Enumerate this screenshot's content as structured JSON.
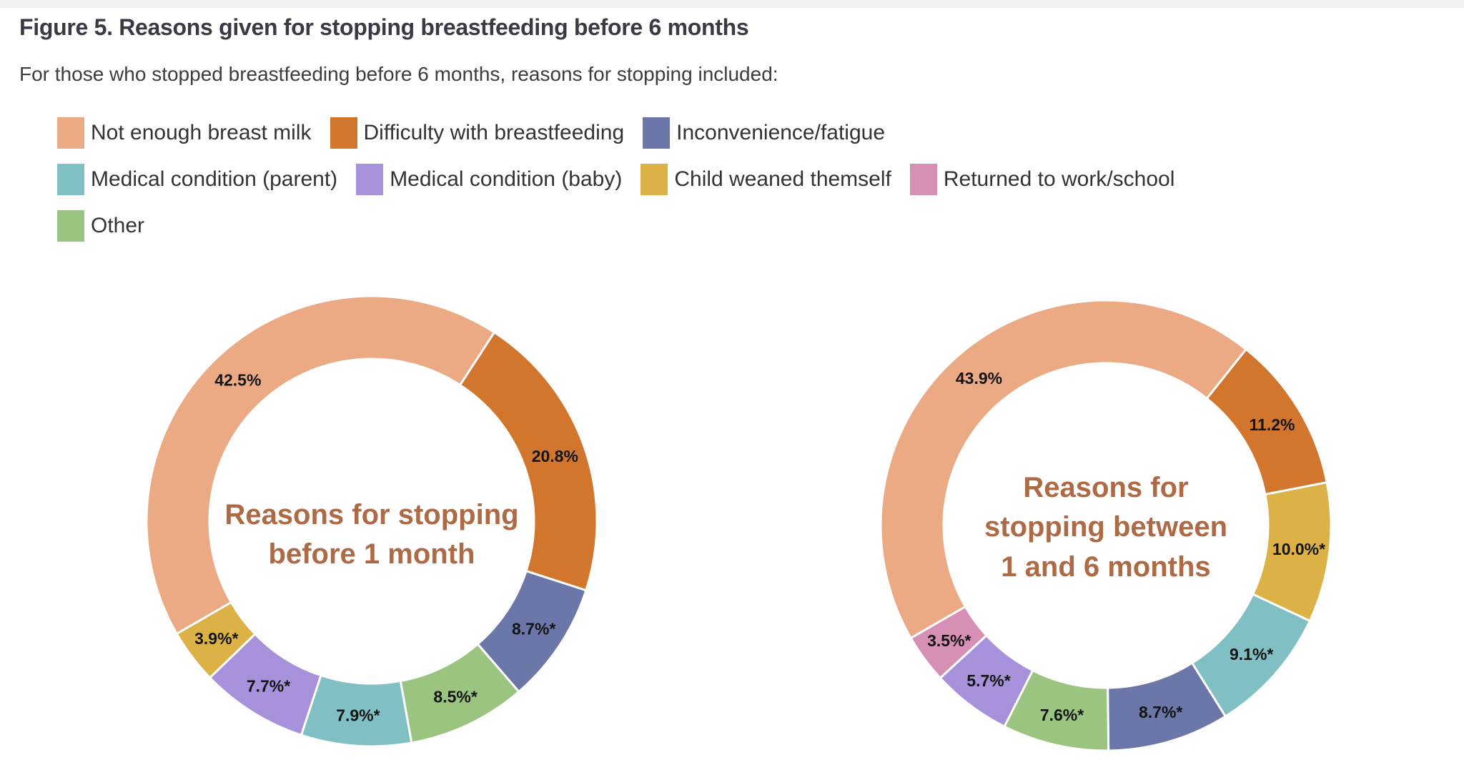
{
  "page": {
    "title": "Figure 5. Reasons given for stopping breastfeeding before 6 months",
    "subtitle": "For those who stopped breastfeeding before 6 months, reasons for stopping included:"
  },
  "colors": {
    "not_enough_breast_milk": "#EBAA84",
    "difficulty_with_breastfeeding": "#D1762C",
    "inconvenience_fatigue": "#6B76A9",
    "medical_condition_parent": "#80BFC4",
    "medical_condition_baby": "#A791DB",
    "child_weaned_themself": "#DCB247",
    "returned_to_work_school": "#D790B5",
    "other": "#9BC481",
    "center_title_text": "#AD6A45",
    "heading_text": "#3A3A44",
    "segment_label_text": "#141414"
  },
  "legend": {
    "items": [
      {
        "label": "Not enough breast milk",
        "color": "#EBAA84"
      },
      {
        "label": "Difficulty with breastfeeding",
        "color": "#D1762C"
      },
      {
        "label": "Inconvenience/fatigue",
        "color": "#6B76A9"
      },
      {
        "label": "Medical condition (parent)",
        "color": "#80BFC4"
      },
      {
        "label": "Medical condition (baby)",
        "color": "#A791DB"
      },
      {
        "label": "Child weaned themself",
        "color": "#DCB247"
      },
      {
        "label": "Returned to work/school",
        "color": "#D790B5"
      },
      {
        "label": "Other",
        "color": "#9BC481"
      }
    ]
  },
  "chart_data": [
    {
      "type": "pie",
      "subtype": "donut",
      "title": "Reasons for stopping before 1 month",
      "title_lines": [
        "Reasons for stopping",
        "before 1 month"
      ],
      "start_angle_deg": 240,
      "legend_position": "top",
      "segments": [
        {
          "category": "Not enough breast milk",
          "value": 42.5,
          "label": "42.5%",
          "color": "#EBAA84"
        },
        {
          "category": "Difficulty with breastfeeding",
          "value": 20.8,
          "label": "20.8%",
          "color": "#D1762C"
        },
        {
          "category": "Inconvenience/fatigue",
          "value": 8.7,
          "label": "8.7%*",
          "color": "#6B76A9"
        },
        {
          "category": "Other",
          "value": 8.5,
          "label": "8.5%*",
          "color": "#9BC481"
        },
        {
          "category": "Medical condition (parent)",
          "value": 7.9,
          "label": "7.9%*",
          "color": "#80BFC4"
        },
        {
          "category": "Medical condition (baby)",
          "value": 7.7,
          "label": "7.7%*",
          "color": "#A791DB"
        },
        {
          "category": "Child weaned themself",
          "value": 3.9,
          "label": "3.9%*",
          "color": "#DCB247"
        }
      ]
    },
    {
      "type": "pie",
      "subtype": "donut",
      "title": "Reasons for stopping between 1 and 6 months",
      "title_lines": [
        "Reasons for",
        "stopping between",
        "1 and 6 months"
      ],
      "start_angle_deg": 240,
      "legend_position": "top",
      "segments": [
        {
          "category": "Not enough breast milk",
          "value": 43.9,
          "label": "43.9%",
          "color": "#EBAA84"
        },
        {
          "category": "Difficulty with breastfeeding",
          "value": 11.2,
          "label": "11.2%",
          "color": "#D1762C"
        },
        {
          "category": "Child weaned themself",
          "value": 10.0,
          "label": "10.0%*",
          "color": "#DCB247"
        },
        {
          "category": "Medical condition (parent)",
          "value": 9.1,
          "label": "9.1%*",
          "color": "#80BFC4"
        },
        {
          "category": "Inconvenience/fatigue",
          "value": 8.7,
          "label": "8.7%*",
          "color": "#6B76A9"
        },
        {
          "category": "Other",
          "value": 7.6,
          "label": "7.6%*",
          "color": "#9BC481"
        },
        {
          "category": "Medical condition (baby)",
          "value": 5.7,
          "label": "5.7%*",
          "color": "#A791DB"
        },
        {
          "category": "Returned to work/school",
          "value": 3.5,
          "label": "3.5%*",
          "color": "#D790B5"
        }
      ]
    }
  ]
}
